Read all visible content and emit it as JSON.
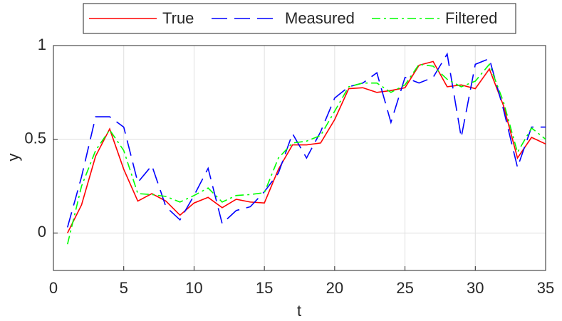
{
  "chart_data": {
    "type": "line",
    "x_label": "t",
    "y_label": "y",
    "x": [
      1,
      2,
      3,
      4,
      5,
      6,
      7,
      8,
      9,
      10,
      11,
      12,
      13,
      14,
      15,
      16,
      17,
      18,
      19,
      20,
      21,
      22,
      23,
      24,
      25,
      26,
      27,
      28,
      29,
      30,
      31,
      32,
      33,
      34,
      35
    ],
    "series": [
      {
        "name": "True",
        "color": "#ff0000",
        "dash": "solid",
        "values": [
          0,
          0.15,
          0.41,
          0.555,
          0.34,
          0.17,
          0.21,
          0.17,
          0.095,
          0.16,
          0.19,
          0.135,
          0.18,
          0.165,
          0.16,
          0.34,
          0.47,
          0.47,
          0.48,
          0.605,
          0.77,
          0.775,
          0.75,
          0.76,
          0.775,
          0.895,
          0.915,
          0.78,
          0.79,
          0.77,
          0.875,
          0.68,
          0.4,
          0.51,
          0.475
        ]
      },
      {
        "name": "Measured",
        "color": "#0000ff",
        "dash": "dashed",
        "values": [
          0.03,
          0.3,
          0.62,
          0.62,
          0.565,
          0.27,
          0.36,
          0.14,
          0.07,
          0.2,
          0.345,
          0.05,
          0.12,
          0.14,
          0.22,
          0.32,
          0.53,
          0.4,
          0.54,
          0.72,
          0.78,
          0.8,
          0.855,
          0.59,
          0.83,
          0.8,
          0.83,
          0.955,
          0.51,
          0.9,
          0.93,
          0.66,
          0.35,
          0.565,
          0.565
        ]
      },
      {
        "name": "Filtered",
        "color": "#00ff00",
        "dash": "dashdot",
        "values": [
          -0.06,
          0.25,
          0.44,
          0.55,
          0.44,
          0.21,
          0.205,
          0.195,
          0.165,
          0.2,
          0.24,
          0.165,
          0.2,
          0.205,
          0.215,
          0.4,
          0.48,
          0.49,
          0.52,
          0.65,
          0.78,
          0.8,
          0.8,
          0.75,
          0.79,
          0.9,
          0.89,
          0.82,
          0.78,
          0.81,
          0.9,
          0.7,
          0.43,
          0.56,
          0.5
        ]
      }
    ],
    "xlim": [
      0,
      35
    ],
    "ylim": [
      -0.2,
      1
    ],
    "xticks": [
      0,
      5,
      10,
      15,
      20,
      25,
      30,
      35
    ],
    "yticks": [
      0,
      0.5,
      1
    ],
    "grid": true,
    "legend": "top"
  }
}
